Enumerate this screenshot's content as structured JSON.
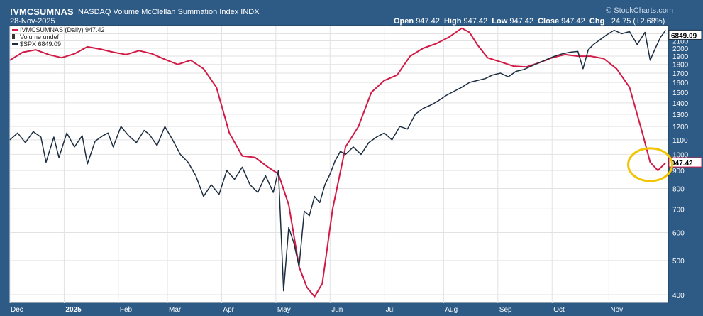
{
  "header": {
    "symbol": "!VMCSUMNAS",
    "name": "NASDAQ Volume McClellan Summation Index",
    "exchange": "INDX",
    "date": "28-Nov-2025",
    "credit": "© StockCharts.com",
    "ohlc": {
      "open_label": "Open",
      "open": "947.42",
      "high_label": "High",
      "high": "947.42",
      "low_label": "Low",
      "low": "947.42",
      "close_label": "Close",
      "close": "947.42",
      "chg_label": "Chg",
      "chg": "+24.75 (+2.68%)"
    }
  },
  "legend": [
    {
      "label": "!VMCSUMNAS (Daily) 947.42",
      "color": "#d11a46"
    },
    {
      "label": "Volume undef",
      "color": "#333333"
    },
    {
      "label": "$SPX 6849.09",
      "color": "#1c2d40"
    }
  ],
  "badges": {
    "spx_last": "6849.09",
    "vmc_last": "947.42"
  },
  "colors": {
    "vmc": "#d11a46",
    "spx": "#1c2d40",
    "highlight": "#f2c400"
  },
  "chart_data": {
    "type": "line",
    "x_axis_labels": [
      "Dec",
      "2025",
      "Feb",
      "Mar",
      "Apr",
      "May",
      "Jun",
      "Jul",
      "Aug",
      "Sep",
      "Oct",
      "Nov"
    ],
    "y_axis_scale": "log",
    "y_ticks": [
      400,
      500,
      600,
      700,
      800,
      900,
      1000,
      1100,
      1200,
      1300,
      1400,
      1500,
      1600,
      1700,
      1800,
      1900,
      2000,
      2100,
      2200
    ],
    "ylim": [
      380,
      2320
    ],
    "xlim": [
      0,
      255
    ],
    "grid": true,
    "annotation": "yellow circle around latest value",
    "series": [
      {
        "name": "!VMCSUMNAS",
        "x": [
          0,
          5,
          10,
          15,
          20,
          25,
          30,
          35,
          40,
          45,
          50,
          55,
          60,
          65,
          70,
          75,
          80,
          85,
          90,
          95,
          100,
          104,
          108,
          112,
          115,
          118,
          121,
          125,
          130,
          135,
          140,
          145,
          150,
          155,
          160,
          165,
          170,
          175,
          178,
          181,
          185,
          190,
          195,
          200,
          205,
          210,
          215,
          220,
          225,
          230,
          235,
          240,
          245,
          248,
          251,
          254
        ],
        "values": [
          1850,
          1950,
          1980,
          1920,
          1880,
          1930,
          2020,
          1990,
          1950,
          1920,
          1970,
          1930,
          1860,
          1800,
          1850,
          1750,
          1550,
          1150,
          990,
          980,
          920,
          880,
          720,
          480,
          420,
          395,
          430,
          700,
          1050,
          1200,
          1500,
          1620,
          1680,
          1900,
          2000,
          2060,
          2150,
          2280,
          2220,
          2050,
          1880,
          1830,
          1780,
          1770,
          1820,
          1880,
          1920,
          1900,
          1900,
          1870,
          1750,
          1550,
          1150,
          950,
          900,
          947.42
        ]
      },
      {
        "name": "$SPX",
        "x": [
          0,
          3,
          6,
          9,
          12,
          14,
          17,
          19,
          22,
          25,
          28,
          30,
          33,
          36,
          38,
          40,
          43,
          46,
          49,
          52,
          54,
          57,
          60,
          63,
          66,
          69,
          72,
          75,
          78,
          81,
          84,
          87,
          90,
          93,
          96,
          99,
          102,
          104,
          106,
          108,
          110,
          112,
          114,
          116,
          118,
          120,
          122,
          124,
          126,
          128,
          130,
          133,
          136,
          139,
          142,
          145,
          148,
          151,
          154,
          157,
          160,
          163,
          166,
          169,
          172,
          175,
          178,
          181,
          184,
          187,
          190,
          193,
          196,
          199,
          202,
          205,
          208,
          211,
          214,
          217,
          220,
          222,
          224,
          226,
          228,
          231,
          234,
          237,
          240,
          243,
          246,
          248,
          250,
          252,
          254
        ],
        "values": [
          1100,
          1150,
          1080,
          1160,
          1120,
          950,
          1120,
          980,
          1150,
          1050,
          1130,
          940,
          1090,
          1130,
          1150,
          1050,
          1200,
          1130,
          1080,
          1170,
          1140,
          1060,
          1200,
          1100,
          1000,
          950,
          870,
          760,
          820,
          770,
          900,
          850,
          920,
          820,
          780,
          870,
          780,
          900,
          410,
          620,
          560,
          480,
          690,
          670,
          760,
          730,
          820,
          880,
          960,
          1020,
          1000,
          1050,
          1000,
          1080,
          1120,
          1150,
          1100,
          1200,
          1180,
          1300,
          1350,
          1380,
          1420,
          1470,
          1510,
          1550,
          1600,
          1620,
          1640,
          1680,
          1700,
          1660,
          1720,
          1740,
          1780,
          1820,
          1860,
          1900,
          1930,
          1950,
          1960,
          1750,
          1980,
          2050,
          2100,
          2180,
          2250,
          2200,
          2230,
          2050,
          2220,
          1850,
          2000,
          2150,
          2250
        ]
      }
    ]
  }
}
